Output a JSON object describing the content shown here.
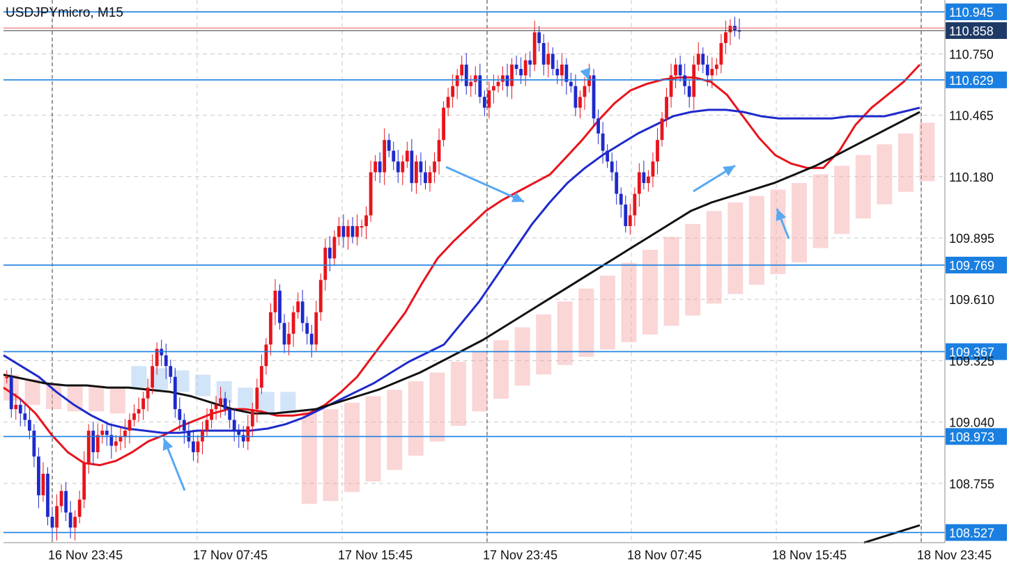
{
  "symbol_label": "USDJPYmicro, M15",
  "chart_data": {
    "type": "candlestick",
    "title": "USDJPYmicro, M15",
    "ylim": [
      108.48,
      111.0
    ],
    "y_ticks": [
      110.75,
      110.465,
      110.18,
      109.895,
      109.61,
      109.325,
      109.04,
      108.755
    ],
    "y_tick_labels": [
      "110.750",
      "110.465",
      "110.180",
      "109.895",
      "109.610",
      "109.325",
      "109.040",
      "108.755"
    ],
    "x_tick_labels": [
      "16 Nov 23:45",
      "17 Nov 07:45",
      "17 Nov 15:45",
      "17 Nov 23:45",
      "18 Nov 07:45",
      "18 Nov 15:45",
      "18 Nov 23:45"
    ],
    "bars_per_label": 32,
    "total_bars": 158,
    "close_series": [
      109.25,
      109.1,
      109.12,
      109.08,
      109.05,
      109.0,
      108.88,
      108.7,
      108.8,
      108.6,
      108.55,
      108.65,
      108.72,
      108.62,
      108.55,
      108.6,
      108.68,
      108.85,
      109.0,
      108.9,
      108.98,
      109.0,
      108.98,
      108.93,
      108.95,
      108.97,
      109.0,
      109.05,
      109.08,
      109.1,
      109.15,
      109.2,
      109.3,
      109.38,
      109.35,
      109.3,
      109.25,
      109.1,
      109.05,
      109.0,
      108.95,
      108.9,
      108.95,
      109.0,
      109.05,
      109.1,
      109.12,
      109.15,
      109.1,
      109.05,
      109.0,
      108.98,
      108.95,
      109.02,
      109.1,
      109.2,
      109.3,
      109.4,
      109.55,
      109.65,
      109.5,
      109.4,
      109.45,
      109.55,
      109.6,
      109.5,
      109.45,
      109.4,
      109.55,
      109.7,
      109.85,
      109.8,
      109.9,
      109.95,
      109.9,
      109.95,
      109.9,
      109.95,
      109.95,
      110.0,
      110.2,
      110.25,
      110.2,
      110.35,
      110.3,
      110.25,
      110.2,
      110.25,
      110.3,
      110.15,
      110.25,
      110.2,
      110.15,
      110.2,
      110.25,
      110.35,
      110.5,
      110.55,
      110.6,
      110.65,
      110.7,
      110.6,
      110.62,
      110.65,
      110.55,
      110.5,
      110.58,
      110.6,
      110.62,
      110.65,
      110.6,
      110.7,
      110.68,
      110.65,
      110.72,
      110.7,
      110.85,
      110.8,
      110.7,
      110.75,
      110.68,
      110.65,
      110.7,
      110.62,
      110.6,
      110.5,
      110.55,
      110.6,
      110.65,
      110.45,
      110.38,
      110.3,
      110.25,
      110.2,
      110.1,
      110.05,
      109.95,
      110.0,
      110.1,
      110.2,
      110.15,
      110.18,
      110.25,
      110.35,
      110.45,
      110.55,
      110.65,
      110.7,
      110.65,
      110.6,
      110.55,
      110.7,
      110.75,
      110.7,
      110.65,
      110.68,
      110.7,
      110.8,
      110.85,
      110.88,
      110.86,
      110.858
    ],
    "series": [
      {
        "color": "#e8141c",
        "values": [
          109.2,
          109.15,
          109.08,
          108.98,
          108.9,
          108.85,
          108.84,
          108.86,
          108.9,
          108.95,
          108.98,
          109.02,
          109.05,
          109.08,
          109.1,
          109.1,
          109.09,
          109.07,
          109.07,
          109.08,
          109.12,
          109.18,
          109.25,
          109.35,
          109.45,
          109.55,
          109.68,
          109.8,
          109.88,
          109.95,
          110.02,
          110.07,
          110.11,
          110.15,
          110.19,
          110.27,
          110.35,
          110.44,
          110.52,
          110.58,
          110.61,
          110.63,
          110.64,
          110.64,
          110.62,
          110.56,
          110.46,
          110.36,
          110.28,
          110.24,
          110.22,
          110.22,
          110.3,
          110.42,
          110.5,
          110.56,
          110.62,
          110.7
        ]
      },
      {
        "color": "#1e2acb",
        "values": [
          109.35,
          109.3,
          109.25,
          109.18,
          109.12,
          109.07,
          109.03,
          109.01,
          109.0,
          108.99,
          108.99,
          109.0,
          109.0,
          109.0,
          109.0,
          109.01,
          109.03,
          109.06,
          109.1,
          109.14,
          109.18,
          109.22,
          109.27,
          109.32,
          109.36,
          109.4,
          109.5,
          109.6,
          109.72,
          109.84,
          109.96,
          110.06,
          110.15,
          110.22,
          110.28,
          110.33,
          110.38,
          110.42,
          110.46,
          110.48,
          110.49,
          110.49,
          110.48,
          110.46,
          110.45,
          110.45,
          110.45,
          110.45,
          110.46,
          110.46,
          110.46,
          110.48,
          110.5
        ]
      },
      {
        "color": "#111111",
        "values": [
          109.26,
          109.24,
          109.22,
          109.21,
          109.21,
          109.2,
          109.2,
          109.19,
          109.18,
          109.16,
          109.13,
          109.1,
          109.08,
          109.08,
          109.09,
          109.1,
          109.13,
          109.16,
          109.19,
          109.23,
          109.27,
          109.32,
          109.37,
          109.42,
          109.48,
          109.54,
          109.6,
          109.66,
          109.72,
          109.78,
          109.84,
          109.9,
          109.96,
          110.02,
          110.06,
          110.09,
          110.12,
          110.15,
          110.19,
          110.23,
          110.28,
          110.33,
          110.38,
          110.43,
          110.48
        ]
      }
    ],
    "price_levels": [
      "110.945",
      "110.858",
      "110.629",
      "109.769",
      "109.367",
      "108.973",
      "108.527"
    ],
    "grid": true
  },
  "colors": {
    "bull": "#e8141c",
    "bear": "#1e2acb",
    "level_line": "#1a7fe0",
    "label_bg": "#1a7fe0",
    "current_label_bg": "#1f3a66",
    "cloud_bull": "#f5a3a3",
    "cloud_bear": "#9cc3ef",
    "arrow": "#57a8f2"
  }
}
